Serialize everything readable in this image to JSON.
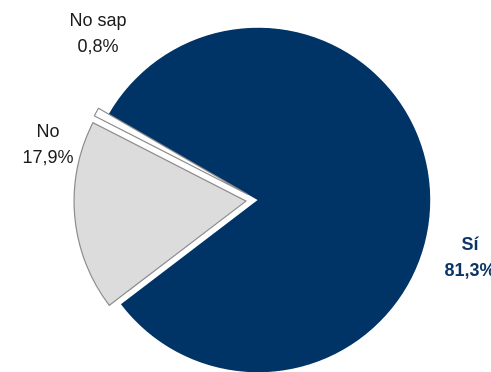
{
  "chart_data": {
    "type": "pie",
    "title": "",
    "unit": "%",
    "slices": [
      {
        "name": "Sí",
        "value": 81.3,
        "value_label": "81,3%",
        "color": "#003366",
        "label_color": "#0c3466",
        "exploded": false
      },
      {
        "name": "No",
        "value": 17.9,
        "value_label": "17,9%",
        "color": "#dcdcdc",
        "label_color": "#1a1a1a",
        "exploded": true
      },
      {
        "name": "No sap",
        "value": 0.8,
        "value_label": "0,8%",
        "color": "#ffffff",
        "label_color": "#1a1a1a",
        "exploded": true
      }
    ],
    "legend": "none",
    "outline_color": "#8c8c8c"
  }
}
